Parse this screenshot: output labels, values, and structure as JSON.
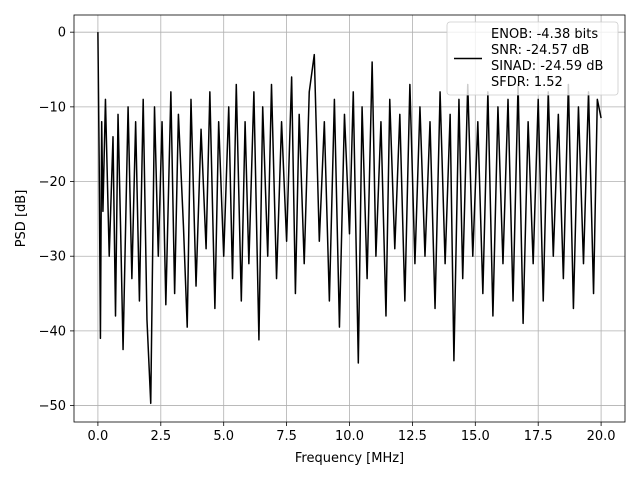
{
  "chart_data": {
    "type": "line",
    "title": "",
    "xlabel": "Frequency [MHz]",
    "ylabel": "PSD [dB]",
    "xlim": [
      -0.95,
      20.95
    ],
    "ylim": [
      -52.2,
      2.3
    ],
    "x_ticks": [
      0.0,
      2.5,
      5.0,
      7.5,
      10.0,
      12.5,
      15.0,
      17.5,
      20.0
    ],
    "x_tick_labels": [
      "0.0",
      "2.5",
      "5.0",
      "7.5",
      "10.0",
      "12.5",
      "15.0",
      "17.5",
      "20.0"
    ],
    "y_ticks": [
      0,
      -10,
      -20,
      -30,
      -40,
      -50
    ],
    "y_tick_labels": [
      "0",
      "−10",
      "−20",
      "−30",
      "−40",
      "−50"
    ],
    "grid": true,
    "legend_position": "top-right",
    "line_color": "#000000",
    "series": [
      {
        "name": "ENOB: -4.38 bits\nSNR: -24.57 dB\nSINAD: -24.59 dB\nSFDR: 1.52",
        "legend_lines": [
          "ENOB: -4.38 bits",
          "SNR: -24.57 dB",
          "SINAD: -24.59 dB",
          "SFDR: 1.52"
        ],
        "description": "Noise-like PSD spanning 0 to 20 MHz, mostly between about -28 and -8 dB, with a spike to 0 dB at 0 MHz and deep dips to about -49.7 dB near 2.1 MHz.",
        "x": [
          0.0,
          0.05,
          0.1,
          0.15,
          0.2,
          0.3,
          0.45,
          0.6,
          0.7,
          0.8,
          0.9,
          1.0,
          1.2,
          1.35,
          1.5,
          1.65,
          1.8,
          1.95,
          2.1,
          2.25,
          2.4,
          2.55,
          2.7,
          2.9,
          3.05,
          3.2,
          3.4,
          3.55,
          3.7,
          3.9,
          4.1,
          4.3,
          4.45,
          4.65,
          4.8,
          5.0,
          5.2,
          5.35,
          5.5,
          5.7,
          5.85,
          6.0,
          6.2,
          6.4,
          6.55,
          6.75,
          6.9,
          7.1,
          7.3,
          7.5,
          7.7,
          7.85,
          8.0,
          8.2,
          8.4,
          8.6,
          8.8,
          9.0,
          9.2,
          9.4,
          9.6,
          9.8,
          10.0,
          10.15,
          10.35,
          10.5,
          10.7,
          10.9,
          11.05,
          11.25,
          11.45,
          11.6,
          11.8,
          12.0,
          12.2,
          12.4,
          12.6,
          12.8,
          13.0,
          13.2,
          13.4,
          13.6,
          13.8,
          14.0,
          14.15,
          14.35,
          14.5,
          14.7,
          14.9,
          15.1,
          15.3,
          15.5,
          15.7,
          15.9,
          16.1,
          16.3,
          16.5,
          16.7,
          16.9,
          17.1,
          17.3,
          17.5,
          17.7,
          17.9,
          18.1,
          18.3,
          18.5,
          18.7,
          18.9,
          19.1,
          19.3,
          19.5,
          19.7,
          19.85,
          20.0
        ],
        "y": [
          0.0,
          -17.0,
          -41.0,
          -12.0,
          -24.0,
          -9.0,
          -30.0,
          -14.0,
          -38.0,
          -11.0,
          -26.0,
          -42.5,
          -10.0,
          -33.0,
          -12.0,
          -36.0,
          -9.0,
          -38.5,
          -49.7,
          -10.0,
          -30.0,
          -12.0,
          -36.5,
          -8.0,
          -35.0,
          -11.0,
          -26.0,
          -39.5,
          -9.0,
          -34.0,
          -13.0,
          -29.0,
          -8.0,
          -37.0,
          -12.0,
          -30.0,
          -10.0,
          -33.0,
          -7.0,
          -36.0,
          -12.0,
          -31.0,
          -8.0,
          -41.2,
          -10.0,
          -30.0,
          -7.0,
          -33.0,
          -12.0,
          -28.0,
          -6.0,
          -35.0,
          -11.0,
          -31.0,
          -8.0,
          -3.0,
          -28.0,
          -12.0,
          -36.0,
          -9.0,
          -39.5,
          -11.0,
          -27.0,
          -8.0,
          -44.3,
          -10.0,
          -33.0,
          -4.0,
          -30.0,
          -12.0,
          -38.0,
          -9.0,
          -29.0,
          -11.0,
          -36.0,
          -7.0,
          -31.0,
          -10.0,
          -30.0,
          -12.0,
          -37.0,
          -8.0,
          -31.0,
          -11.0,
          -44.0,
          -9.0,
          -33.0,
          -7.0,
          -30.0,
          -12.0,
          -35.0,
          -8.0,
          -38.0,
          -10.0,
          -31.0,
          -9.0,
          -36.0,
          -7.0,
          -39.0,
          -12.0,
          -31.0,
          -9.0,
          -36.0,
          -8.0,
          -30.0,
          -11.0,
          -33.0,
          -7.0,
          -37.0,
          -10.0,
          -31.0,
          -8.0,
          -35.0,
          -9.0,
          -11.5
        ]
      }
    ]
  }
}
